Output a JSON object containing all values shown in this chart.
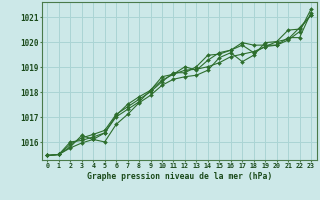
{
  "title": "Graphe pression niveau de la mer (hPa)",
  "bg_color": "#cce8e8",
  "grid_color": "#aad4d4",
  "line_color": "#2d6e2d",
  "marker": "D",
  "marker_size": 2.0,
  "line_width": 0.8,
  "xlim": [
    -0.5,
    23.5
  ],
  "ylim": [
    1015.3,
    1021.6
  ],
  "yticks": [
    1016,
    1017,
    1018,
    1019,
    1020,
    1021
  ],
  "xticks": [
    0,
    1,
    2,
    3,
    4,
    5,
    6,
    7,
    8,
    9,
    10,
    11,
    12,
    13,
    14,
    15,
    16,
    17,
    18,
    19,
    20,
    21,
    22,
    23
  ],
  "series": [
    [
      1015.48,
      1015.52,
      1015.82,
      1016.28,
      1016.12,
      1016.38,
      1017.02,
      1017.32,
      1017.62,
      1018.08,
      1018.48,
      1018.72,
      1018.88,
      1018.92,
      1019.02,
      1019.18,
      1019.42,
      1019.52,
      1019.62,
      1019.82,
      1019.88,
      1020.08,
      1020.42,
      1021.32
    ],
    [
      1015.48,
      1015.52,
      1015.78,
      1015.98,
      1016.12,
      1016.02,
      1016.72,
      1017.12,
      1017.58,
      1017.88,
      1018.28,
      1018.52,
      1018.62,
      1018.68,
      1018.88,
      1019.38,
      1019.58,
      1019.22,
      1019.48,
      1019.98,
      1020.02,
      1020.48,
      1020.52,
      1021.08
    ],
    [
      1015.48,
      1015.52,
      1015.92,
      1016.18,
      1016.32,
      1016.48,
      1017.12,
      1017.42,
      1017.72,
      1018.02,
      1018.42,
      1018.78,
      1018.78,
      1019.02,
      1019.48,
      1019.52,
      1019.68,
      1019.88,
      1019.58,
      1019.82,
      1020.02,
      1020.12,
      1020.58,
      1021.08
    ],
    [
      1015.48,
      1015.52,
      1016.02,
      1016.08,
      1016.22,
      1016.38,
      1017.08,
      1017.52,
      1017.82,
      1018.08,
      1018.62,
      1018.72,
      1019.02,
      1018.88,
      1019.28,
      1019.58,
      1019.68,
      1019.98,
      1019.88,
      1019.88,
      1019.88,
      1020.18,
      1020.18,
      1021.18
    ]
  ]
}
